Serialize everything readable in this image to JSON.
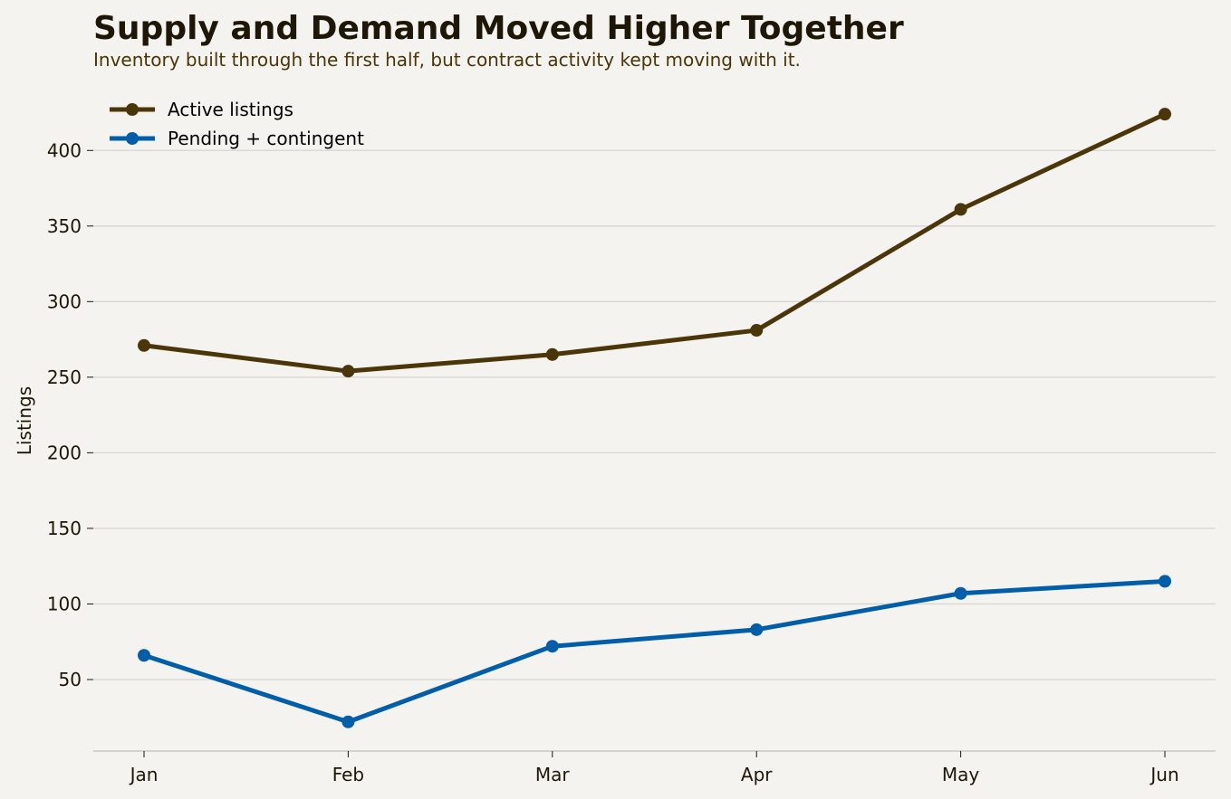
{
  "chart_data": {
    "type": "line",
    "title": "Supply and Demand Moved Higher Together",
    "subtitle": "Inventory built through the first half, but contract activity kept moving with it.",
    "xlabel": "",
    "ylabel": "Listings",
    "categories": [
      "Jan",
      "Feb",
      "Mar",
      "Apr",
      "May",
      "Jun"
    ],
    "series": [
      {
        "name": "Active listings",
        "color": "#4a3608",
        "values": [
          271,
          254,
          265,
          281,
          361,
          424
        ]
      },
      {
        "name": "Pending + contingent",
        "color": "#035ea9",
        "values": [
          66,
          22,
          72,
          83,
          107,
          115
        ]
      }
    ],
    "yticks": [
      50,
      100,
      150,
      200,
      250,
      300,
      350,
      400
    ],
    "ylim": [
      0,
      430
    ],
    "grid": "horizontal",
    "legend": "top-left",
    "colors": {
      "background": "#f4f3ef",
      "grid": "#d6d5d1",
      "axis": "#c9c8c4",
      "text": "#1e1607"
    }
  }
}
